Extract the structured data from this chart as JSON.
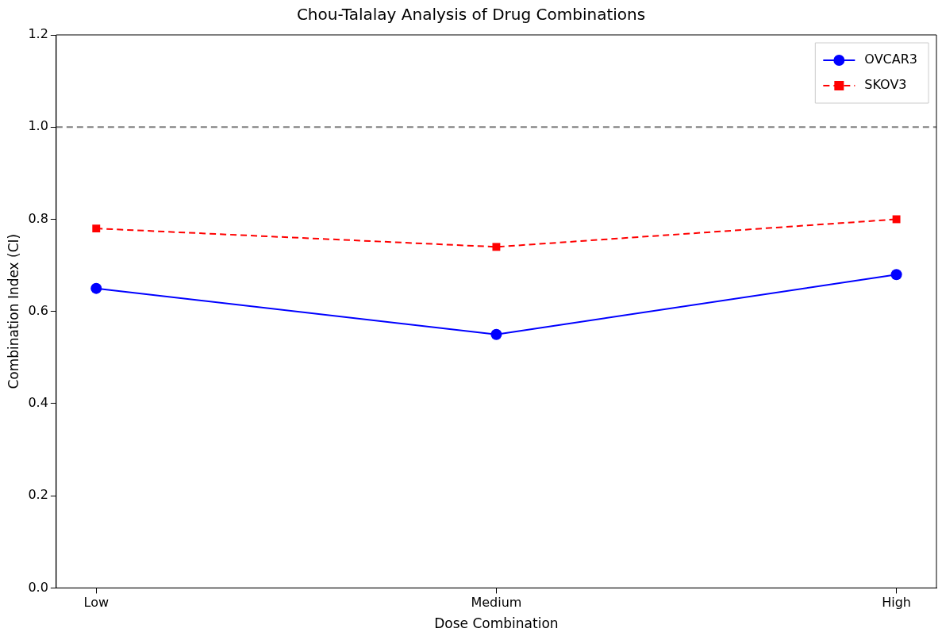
{
  "chart_data": {
    "type": "line",
    "title": "Chou-Talalay Analysis of Drug Combinations",
    "xlabel": "Dose Combination",
    "ylabel": "Combination Index (CI)",
    "categories": [
      "Low",
      "Medium",
      "High"
    ],
    "series": [
      {
        "name": "OVCAR3",
        "color": "#0000ff",
        "values": [
          0.65,
          0.55,
          0.68
        ],
        "marker": "circle",
        "line_style": "solid"
      },
      {
        "name": "SKOV3",
        "color": "#ff0000",
        "values": [
          0.78,
          0.74,
          0.8
        ],
        "marker": "square",
        "line_style": "dashed"
      }
    ],
    "ylim": [
      0,
      1.2
    ],
    "yticks": [
      {
        "value": 0,
        "label": "0.0"
      },
      {
        "value": 0.2,
        "label": "0.2"
      },
      {
        "value": 0.4,
        "label": "0.4"
      },
      {
        "value": 0.6,
        "label": "0.6"
      },
      {
        "value": 0.8,
        "label": "0.8"
      },
      {
        "value": 1,
        "label": "1.0"
      },
      {
        "value": 1.2,
        "label": "1.2"
      }
    ],
    "ref_lines": [
      {
        "axis": "y",
        "value": 1,
        "color": "#808080",
        "line_style": "dashed"
      }
    ],
    "grid": false,
    "legend": "top right"
  }
}
